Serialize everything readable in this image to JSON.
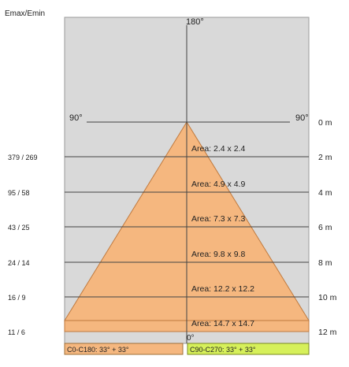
{
  "header": {
    "emax_emin_label": "Emax/Emin"
  },
  "angles": {
    "top": "180°",
    "left": "90°",
    "right": "90°",
    "bottom": "0°"
  },
  "rows": [
    {
      "distance": "0 m",
      "ratio": "",
      "area": ""
    },
    {
      "distance": "2 m",
      "ratio": "379 / 269",
      "area": "Area: 2.4  x  2.4"
    },
    {
      "distance": "4 m",
      "ratio": "95 / 58",
      "area": "Area: 4.9  x  4.9"
    },
    {
      "distance": "6 m",
      "ratio": "43 / 25",
      "area": "Area: 7.3  x  7.3"
    },
    {
      "distance": "8 m",
      "ratio": "24 / 14",
      "area": "Area: 9.8  x  9.8"
    },
    {
      "distance": "10 m",
      "ratio": "16 / 9",
      "area": "Area: 12.2  x  12.2"
    },
    {
      "distance": "12 m",
      "ratio": "11 / 6",
      "area": "Area: 14.7  x  14.7"
    }
  ],
  "footer": {
    "left_label": "C0-C180: 33° + 33°",
    "right_label": "C90-C270: 33° + 33°"
  },
  "colors": {
    "panel_bg": "#d9d9d9",
    "cone_fill": "#f5b77f",
    "cone_stroke": "#c07a3e",
    "left_box": "#f5b77f",
    "right_box": "#d6f05a",
    "line": "#444444"
  }
}
